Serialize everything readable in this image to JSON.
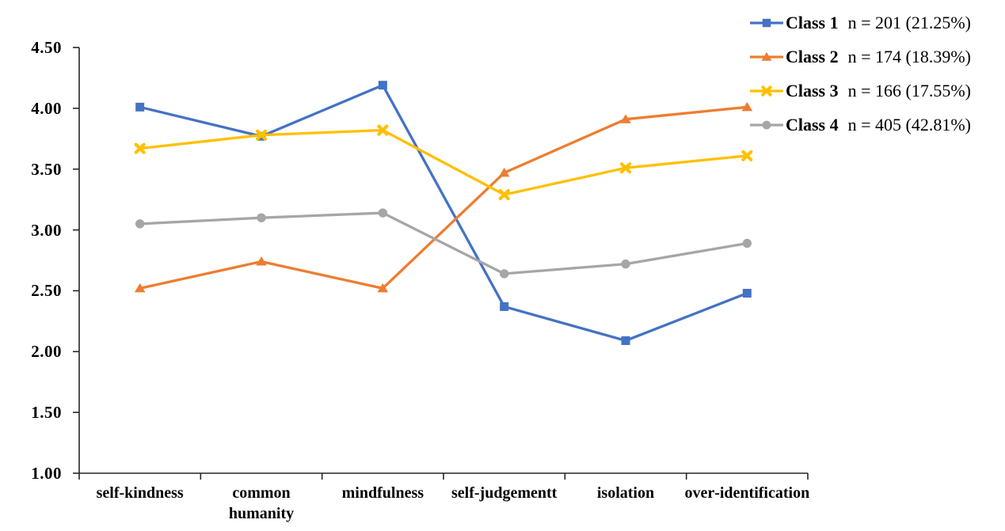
{
  "page": {
    "background": "#FFFFFF"
  },
  "chart_data": {
    "type": "line",
    "title": "",
    "xlabel": "",
    "ylabel": "",
    "grid": false,
    "legend_position": "top-right",
    "axis_color": "#262626",
    "ylim": [
      1.0,
      4.5
    ],
    "y_tick_step": 0.5,
    "y_tick_labels": [
      "4.50",
      "4.00",
      "3.50",
      "3.00",
      "2.50",
      "2.00",
      "1.50",
      "1.00"
    ],
    "categories": [
      "self-kindness",
      "common humanity",
      "mindfulness",
      "self-judgementt",
      "isolation",
      "over-identification"
    ],
    "category_label_lines": [
      [
        "self-kindness"
      ],
      [
        "common",
        "humanity"
      ],
      [
        "mindfulness"
      ],
      [
        "self-judgementt"
      ],
      [
        "isolation"
      ],
      [
        "over-identification"
      ]
    ],
    "series": [
      {
        "name": "Class 1",
        "legend_note": "n = 201 (21.25%)",
        "color": "#4472C4",
        "marker": "square",
        "values": [
          4.01,
          3.77,
          4.19,
          2.37,
          2.09,
          2.48
        ]
      },
      {
        "name": "Class 2",
        "legend_note": "n = 174 (18.39%)",
        "color": "#ED7D31",
        "marker": "triangle",
        "values": [
          2.52,
          2.74,
          2.52,
          3.47,
          3.91,
          4.01
        ]
      },
      {
        "name": "Class 3",
        "legend_note": "n = 166 (17.55%)",
        "color": "#FFC000",
        "marker": "x",
        "values": [
          3.67,
          3.78,
          3.82,
          3.29,
          3.51,
          3.61
        ]
      },
      {
        "name": "Class 4",
        "legend_note": "n = 405 (42.81%)",
        "color": "#A6A6A6",
        "marker": "circle",
        "values": [
          3.05,
          3.1,
          3.14,
          2.64,
          2.72,
          2.89
        ]
      }
    ]
  }
}
